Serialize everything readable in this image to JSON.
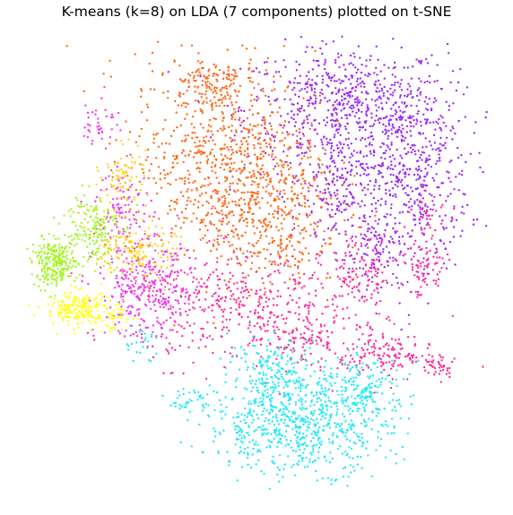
{
  "chart_data": {
    "type": "scatter",
    "title": "K-means (k=8) on LDA (7 components) plotted on t-SNE",
    "xlabel": "",
    "ylabel": "",
    "axes_visible": false,
    "grid": false,
    "legend": "none",
    "xlim": [
      -100,
      100
    ],
    "ylim": [
      -100,
      100
    ],
    "series": [
      {
        "color": "#9b2cf5",
        "clusters": [
          {
            "cx": 38,
            "cy": 68,
            "sx": 22,
            "sy": 14,
            "n": 650
          },
          {
            "cx": 68,
            "cy": 40,
            "sx": 12,
            "sy": 22,
            "n": 450
          },
          {
            "cx": 38,
            "cy": 30,
            "sx": 11,
            "sy": 12,
            "n": 220
          },
          {
            "cx": 52,
            "cy": 5,
            "sx": 5,
            "sy": 8,
            "n": 80
          }
        ]
      },
      {
        "color": "#ff6a1c",
        "clusters": [
          {
            "cx": -15,
            "cy": 45,
            "sx": 20,
            "sy": 24,
            "n": 850
          },
          {
            "cx": 8,
            "cy": 20,
            "sx": 14,
            "sy": 16,
            "n": 300
          },
          {
            "cx": -22,
            "cy": 80,
            "sx": 8,
            "sy": 5,
            "n": 90
          }
        ]
      },
      {
        "color": "#ff2e9a",
        "clusters": [
          {
            "cx": -5,
            "cy": -20,
            "sx": 24,
            "sy": 12,
            "n": 420
          },
          {
            "cx": 45,
            "cy": -5,
            "sx": 8,
            "sy": 10,
            "n": 140
          },
          {
            "cx": 72,
            "cy": -2,
            "sx": 5,
            "sy": 7,
            "n": 80
          },
          {
            "cx": 55,
            "cy": -40,
            "sx": 10,
            "sy": 6,
            "n": 150
          },
          {
            "cx": 78,
            "cy": -45,
            "sx": 4,
            "sy": 3,
            "n": 40
          },
          {
            "cx": 20,
            "cy": -35,
            "sx": 6,
            "sy": 4,
            "n": 70
          },
          {
            "cx": 75,
            "cy": 22,
            "sx": 4,
            "sy": 4,
            "n": 30
          }
        ]
      },
      {
        "color": "#29e8f7",
        "clusters": [
          {
            "cx": 18,
            "cy": -72,
            "sx": 20,
            "sy": 10,
            "n": 650
          },
          {
            "cx": 8,
            "cy": -48,
            "sx": 10,
            "sy": 8,
            "n": 200
          },
          {
            "cx": 45,
            "cy": -55,
            "sx": 10,
            "sy": 7,
            "n": 180
          },
          {
            "cx": -30,
            "cy": -60,
            "sx": 5,
            "sy": 3,
            "n": 40
          },
          {
            "cx": -50,
            "cy": -35,
            "sx": 4,
            "sy": 4,
            "n": 25
          }
        ]
      },
      {
        "color": "#f03cf0",
        "clusters": [
          {
            "cx": -48,
            "cy": -12,
            "sx": 11,
            "sy": 10,
            "n": 320
          },
          {
            "cx": -58,
            "cy": 25,
            "sx": 6,
            "sy": 8,
            "n": 90
          },
          {
            "cx": -68,
            "cy": 62,
            "sx": 4,
            "sy": 6,
            "n": 40
          }
        ]
      },
      {
        "color": "#a5f52a",
        "clusters": [
          {
            "cx": -88,
            "cy": 0,
            "sx": 5,
            "sy": 5,
            "n": 260
          },
          {
            "cx": -72,
            "cy": 16,
            "sx": 6,
            "sy": 8,
            "n": 170
          }
        ]
      },
      {
        "color": "#ffd224",
        "clusters": [
          {
            "cx": -52,
            "cy": 5,
            "sx": 8,
            "sy": 6,
            "n": 150
          },
          {
            "cx": -58,
            "cy": 38,
            "sx": 5,
            "sy": 7,
            "n": 80
          }
        ]
      },
      {
        "color": "#ffff1a",
        "clusters": [
          {
            "cx": -78,
            "cy": -20,
            "sx": 7,
            "sy": 4,
            "n": 200
          },
          {
            "cx": -62,
            "cy": -24,
            "sx": 4,
            "sy": 3,
            "n": 40
          }
        ]
      }
    ]
  }
}
